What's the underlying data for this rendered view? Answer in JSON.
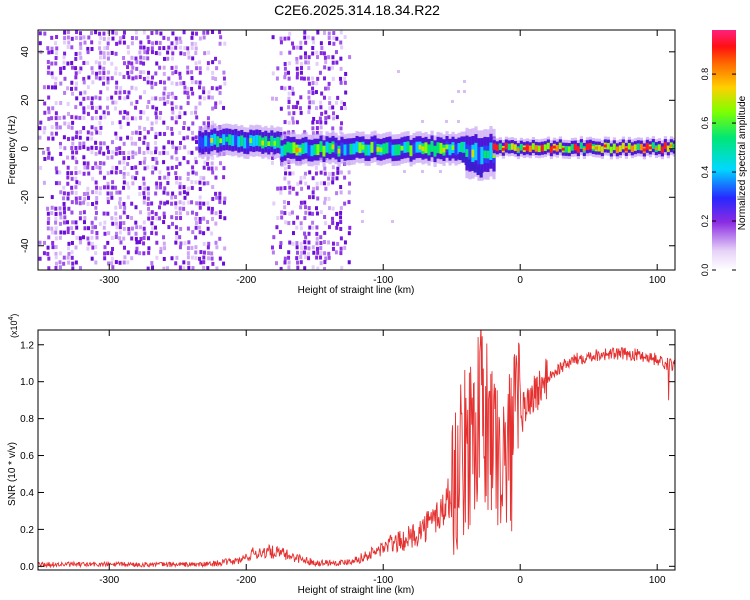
{
  "title": "C2E6.2025.314.18.34.R22",
  "colorbar": {
    "label": "Normalized spectral amplitude",
    "ticks": [
      "0.0",
      "0.2",
      "0.4",
      "0.6",
      "0.8"
    ],
    "range": [
      0,
      0.98
    ]
  },
  "chart_data": [
    {
      "type": "heatmap",
      "title": "",
      "xlabel": "Height of straight line (km)",
      "ylabel": "Frequency (Hz)",
      "xlim": [
        -352,
        113
      ],
      "ylim": [
        -50,
        49
      ],
      "xticks": [
        "-300",
        "-200",
        "-100",
        "0",
        "100"
      ],
      "yticks": [
        "-40",
        "-20",
        "0",
        "20",
        "40"
      ],
      "noise_regions_km": [
        [
          -352,
          -215
        ],
        [
          -182,
          -125
        ]
      ],
      "band": {
        "segments": [
          {
            "x": [
              -235,
              -175
            ],
            "center_hz": 3,
            "halfwidth_hz": 5,
            "peak": 0.55
          },
          {
            "x": [
              -175,
              -40
            ],
            "center_hz": 0,
            "halfwidth_hz": 5,
            "peak": 0.6
          },
          {
            "x": [
              -40,
              -20
            ],
            "center_hz": -2,
            "halfwidth_hz": 8,
            "peak": 0.5
          },
          {
            "x": [
              -20,
              113
            ],
            "center_hz": 0.5,
            "halfwidth_hz": 3,
            "peak": 0.95
          }
        ]
      }
    },
    {
      "type": "line",
      "title": "",
      "xlabel": "Height of straight line (km)",
      "ylabel": "SNR (10 * v/v)",
      "y_multiplier": "(x10^4)",
      "multiplier_base": "(x10",
      "multiplier_exp": "4",
      "multiplier_close": ")",
      "xlim": [
        -352,
        113
      ],
      "ylim": [
        -0.02,
        1.28
      ],
      "xticks": [
        "-300",
        "-200",
        "-100",
        "0",
        "100"
      ],
      "yticks": [
        "0.0",
        "0.2",
        "0.4",
        "0.6",
        "0.8",
        "1.0",
        "1.2"
      ],
      "series": [
        {
          "name": "SNR",
          "color": "#e53030",
          "x": [
            -352,
            -300,
            -230,
            -205,
            -195,
            -185,
            -175,
            -165,
            -150,
            -130,
            -118,
            -105,
            -95,
            -85,
            -75,
            -65,
            -55,
            -48,
            -42,
            -36,
            -30,
            -25,
            -20,
            -15,
            -10,
            -5,
            0,
            5,
            10,
            15,
            20,
            30,
            40,
            50,
            60,
            70,
            80,
            90,
            100,
            105,
            110,
            113
          ],
          "y": [
            0.01,
            0.01,
            0.01,
            0.03,
            0.07,
            0.08,
            0.07,
            0.05,
            0.02,
            0.02,
            0.04,
            0.08,
            0.12,
            0.14,
            0.18,
            0.24,
            0.32,
            0.45,
            0.58,
            0.7,
            0.82,
            0.75,
            0.7,
            0.6,
            0.55,
            0.7,
            0.82,
            0.88,
            0.93,
            0.97,
            1.02,
            1.08,
            1.12,
            1.14,
            1.15,
            1.15,
            1.15,
            1.14,
            1.12,
            1.1,
            1.09,
            1.09
          ]
        }
      ]
    }
  ]
}
